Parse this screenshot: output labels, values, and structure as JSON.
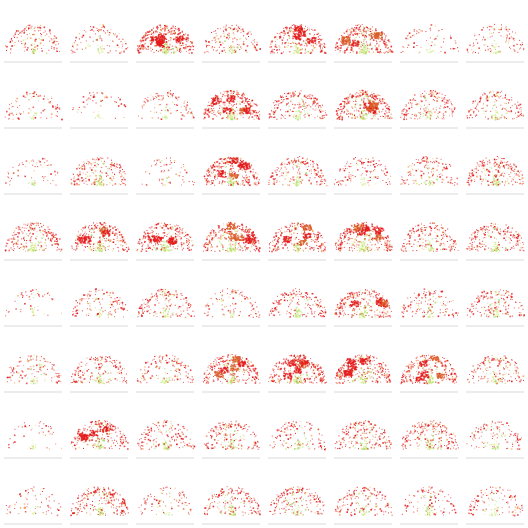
{
  "chart_data": {
    "type": "scatter",
    "layout": "small-multiples",
    "rows": 8,
    "cols": 8,
    "title": "",
    "xlabel": "",
    "ylabel": "",
    "grid": false,
    "legend": "none",
    "palette": {
      "red": "#e31a1c",
      "dark_orange": "#d95f2b",
      "orange": "#f4a259",
      "yellow_green": "#d9ef8b",
      "light_green": "#a6d96a",
      "separator": "#d9d9d9"
    },
    "panel_density": [
      [
        0.35,
        0.25,
        0.95,
        0.4,
        0.7,
        0.9,
        0.1,
        0.25
      ],
      [
        0.15,
        0.05,
        0.2,
        0.85,
        0.55,
        0.85,
        0.45,
        0.4
      ],
      [
        0.1,
        0.55,
        0.08,
        0.85,
        0.55,
        0.3,
        0.35,
        0.6
      ],
      [
        0.6,
        0.7,
        0.65,
        0.8,
        0.7,
        0.9,
        0.5,
        0.55
      ],
      [
        0.05,
        0.3,
        0.45,
        0.2,
        0.5,
        0.7,
        0.35,
        0.45
      ],
      [
        0.3,
        0.45,
        0.35,
        0.85,
        0.9,
        0.9,
        0.75,
        0.4
      ],
      [
        0.05,
        0.65,
        0.4,
        0.45,
        0.3,
        0.55,
        0.6,
        0.3
      ],
      [
        0.1,
        0.6,
        0.15,
        0.5,
        0.45,
        0.4,
        0.25,
        0.25
      ]
    ]
  }
}
